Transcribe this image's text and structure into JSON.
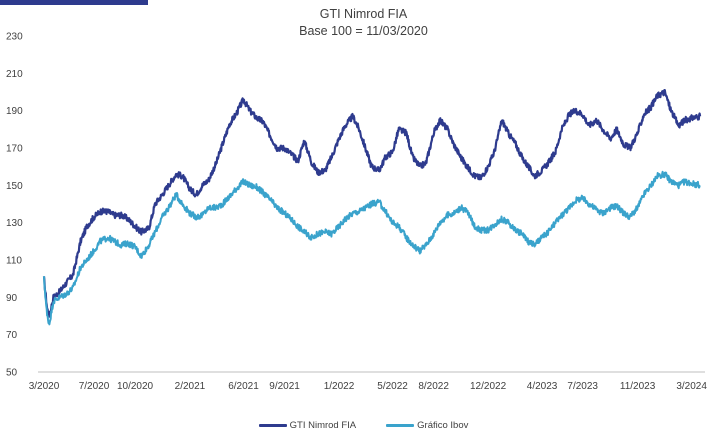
{
  "header_bar_color": "#2e3b8e",
  "chart_data": {
    "type": "line",
    "title": "GTI Nimrod FIA",
    "subtitle": "Base 100 = 11/03/2020",
    "xlabel": "",
    "ylabel": "",
    "ylim": [
      50,
      230
    ],
    "yticks": [
      50,
      70,
      90,
      110,
      130,
      150,
      170,
      190,
      210,
      230
    ],
    "xlim": [
      "2020-03-11",
      "2024-03-31"
    ],
    "xticks": [
      {
        "label": "3/2020",
        "date": "2020-03-01"
      },
      {
        "label": "7/2020",
        "date": "2020-07-01"
      },
      {
        "label": "10/2020",
        "date": "2020-10-01"
      },
      {
        "label": "2/2021",
        "date": "2021-02-01"
      },
      {
        "label": "6/2021",
        "date": "2021-06-01"
      },
      {
        "label": "9/2021",
        "date": "2021-09-01"
      },
      {
        "label": "1/2022",
        "date": "2022-01-01"
      },
      {
        "label": "5/2022",
        "date": "2022-05-01"
      },
      {
        "label": "8/2022",
        "date": "2022-08-01"
      },
      {
        "label": "12/2022",
        "date": "2022-12-01"
      },
      {
        "label": "4/2023",
        "date": "2023-04-01"
      },
      {
        "label": "7/2023",
        "date": "2023-07-01"
      },
      {
        "label": "11/2023",
        "date": "2023-11-01"
      },
      {
        "label": "3/2024",
        "date": "2024-03-01"
      }
    ],
    "grid": false,
    "legend_position": "bottom",
    "series": [
      {
        "name": "GTI Nimrod FIA",
        "color": "#2e3b8e",
        "points": [
          [
            "2020-03-11",
            100
          ],
          [
            "2020-03-18",
            84
          ],
          [
            "2020-03-23",
            80
          ],
          [
            "2020-04-01",
            90
          ],
          [
            "2020-04-15",
            93
          ],
          [
            "2020-05-01",
            98
          ],
          [
            "2020-05-15",
            102
          ],
          [
            "2020-06-01",
            120
          ],
          [
            "2020-06-15",
            128
          ],
          [
            "2020-07-01",
            133
          ],
          [
            "2020-07-15",
            136
          ],
          [
            "2020-08-01",
            136
          ],
          [
            "2020-08-15",
            134
          ],
          [
            "2020-09-01",
            134
          ],
          [
            "2020-09-15",
            132
          ],
          [
            "2020-10-01",
            128
          ],
          [
            "2020-10-15",
            125
          ],
          [
            "2020-11-01",
            127
          ],
          [
            "2020-11-15",
            140
          ],
          [
            "2020-12-01",
            145
          ],
          [
            "2020-12-15",
            150
          ],
          [
            "2021-01-01",
            156
          ],
          [
            "2021-01-15",
            155
          ],
          [
            "2021-02-01",
            148
          ],
          [
            "2021-02-15",
            145
          ],
          [
            "2021-03-01",
            150
          ],
          [
            "2021-03-15",
            153
          ],
          [
            "2021-04-01",
            162
          ],
          [
            "2021-04-15",
            172
          ],
          [
            "2021-05-01",
            183
          ],
          [
            "2021-05-15",
            188
          ],
          [
            "2021-06-01",
            196
          ],
          [
            "2021-06-15",
            190
          ],
          [
            "2021-07-01",
            186
          ],
          [
            "2021-07-15",
            184
          ],
          [
            "2021-08-01",
            176
          ],
          [
            "2021-08-15",
            170
          ],
          [
            "2021-09-01",
            170
          ],
          [
            "2021-09-15",
            167
          ],
          [
            "2021-10-01",
            163
          ],
          [
            "2021-10-15",
            174
          ],
          [
            "2021-11-01",
            162
          ],
          [
            "2021-11-15",
            157
          ],
          [
            "2021-12-01",
            158
          ],
          [
            "2021-12-15",
            165
          ],
          [
            "2022-01-01",
            175
          ],
          [
            "2022-01-15",
            182
          ],
          [
            "2022-02-01",
            187
          ],
          [
            "2022-02-15",
            180
          ],
          [
            "2022-03-01",
            170
          ],
          [
            "2022-03-15",
            160
          ],
          [
            "2022-04-01",
            158
          ],
          [
            "2022-04-15",
            165
          ],
          [
            "2022-05-01",
            168
          ],
          [
            "2022-05-15",
            180
          ],
          [
            "2022-06-01",
            178
          ],
          [
            "2022-06-15",
            165
          ],
          [
            "2022-07-01",
            160
          ],
          [
            "2022-07-15",
            162
          ],
          [
            "2022-08-01",
            178
          ],
          [
            "2022-08-15",
            185
          ],
          [
            "2022-09-01",
            180
          ],
          [
            "2022-09-15",
            172
          ],
          [
            "2022-10-01",
            165
          ],
          [
            "2022-10-15",
            160
          ],
          [
            "2022-11-01",
            155
          ],
          [
            "2022-11-15",
            154
          ],
          [
            "2022-12-01",
            160
          ],
          [
            "2022-12-15",
            168
          ],
          [
            "2023-01-01",
            185
          ],
          [
            "2023-01-15",
            178
          ],
          [
            "2023-02-01",
            172
          ],
          [
            "2023-02-15",
            165
          ],
          [
            "2023-03-01",
            160
          ],
          [
            "2023-03-15",
            155
          ],
          [
            "2023-04-01",
            158
          ],
          [
            "2023-04-15",
            162
          ],
          [
            "2023-05-01",
            168
          ],
          [
            "2023-05-15",
            180
          ],
          [
            "2023-06-01",
            188
          ],
          [
            "2023-06-15",
            190
          ],
          [
            "2023-07-01",
            188
          ],
          [
            "2023-07-15",
            182
          ],
          [
            "2023-08-01",
            185
          ],
          [
            "2023-08-15",
            180
          ],
          [
            "2023-09-01",
            175
          ],
          [
            "2023-09-15",
            180
          ],
          [
            "2023-10-01",
            172
          ],
          [
            "2023-10-15",
            170
          ],
          [
            "2023-11-01",
            178
          ],
          [
            "2023-11-15",
            188
          ],
          [
            "2023-12-01",
            192
          ],
          [
            "2023-12-15",
            198
          ],
          [
            "2024-01-01",
            200
          ],
          [
            "2024-01-15",
            190
          ],
          [
            "2024-02-01",
            182
          ],
          [
            "2024-02-15",
            185
          ],
          [
            "2024-03-01",
            186
          ],
          [
            "2024-03-20",
            187
          ]
        ]
      },
      {
        "name": "Gráfico Ibov",
        "color": "#3aa3cc",
        "points": [
          [
            "2020-03-11",
            100
          ],
          [
            "2020-03-18",
            80
          ],
          [
            "2020-03-23",
            76
          ],
          [
            "2020-04-01",
            88
          ],
          [
            "2020-04-15",
            90
          ],
          [
            "2020-05-01",
            92
          ],
          [
            "2020-05-15",
            95
          ],
          [
            "2020-06-01",
            106
          ],
          [
            "2020-06-15",
            110
          ],
          [
            "2020-07-01",
            115
          ],
          [
            "2020-07-15",
            120
          ],
          [
            "2020-08-01",
            122
          ],
          [
            "2020-08-15",
            120
          ],
          [
            "2020-09-01",
            118
          ],
          [
            "2020-09-15",
            119
          ],
          [
            "2020-10-01",
            117
          ],
          [
            "2020-10-15",
            112
          ],
          [
            "2020-11-01",
            118
          ],
          [
            "2020-11-15",
            125
          ],
          [
            "2020-12-01",
            133
          ],
          [
            "2020-12-15",
            138
          ],
          [
            "2021-01-01",
            145
          ],
          [
            "2021-01-15",
            140
          ],
          [
            "2021-02-01",
            135
          ],
          [
            "2021-02-15",
            133
          ],
          [
            "2021-03-01",
            134
          ],
          [
            "2021-03-15",
            138
          ],
          [
            "2021-04-01",
            138
          ],
          [
            "2021-04-15",
            140
          ],
          [
            "2021-05-01",
            144
          ],
          [
            "2021-05-15",
            148
          ],
          [
            "2021-06-01",
            152
          ],
          [
            "2021-06-15",
            150
          ],
          [
            "2021-07-01",
            149
          ],
          [
            "2021-07-15",
            146
          ],
          [
            "2021-08-01",
            142
          ],
          [
            "2021-08-15",
            138
          ],
          [
            "2021-09-01",
            135
          ],
          [
            "2021-09-15",
            132
          ],
          [
            "2021-10-01",
            128
          ],
          [
            "2021-10-15",
            125
          ],
          [
            "2021-11-01",
            122
          ],
          [
            "2021-11-15",
            124
          ],
          [
            "2021-12-01",
            125
          ],
          [
            "2021-12-15",
            124
          ],
          [
            "2022-01-01",
            128
          ],
          [
            "2022-01-15",
            132
          ],
          [
            "2022-02-01",
            135
          ],
          [
            "2022-02-15",
            136
          ],
          [
            "2022-03-01",
            138
          ],
          [
            "2022-03-15",
            140
          ],
          [
            "2022-04-01",
            141
          ],
          [
            "2022-04-15",
            136
          ],
          [
            "2022-05-01",
            130
          ],
          [
            "2022-05-15",
            128
          ],
          [
            "2022-06-01",
            122
          ],
          [
            "2022-06-15",
            118
          ],
          [
            "2022-07-01",
            115
          ],
          [
            "2022-07-15",
            118
          ],
          [
            "2022-08-01",
            124
          ],
          [
            "2022-08-15",
            130
          ],
          [
            "2022-09-01",
            134
          ],
          [
            "2022-09-15",
            135
          ],
          [
            "2022-10-01",
            138
          ],
          [
            "2022-10-15",
            136
          ],
          [
            "2022-11-01",
            128
          ],
          [
            "2022-11-15",
            126
          ],
          [
            "2022-12-01",
            126
          ],
          [
            "2022-12-15",
            129
          ],
          [
            "2023-01-01",
            132
          ],
          [
            "2023-01-15",
            130
          ],
          [
            "2023-02-01",
            126
          ],
          [
            "2023-02-15",
            124
          ],
          [
            "2023-03-01",
            120
          ],
          [
            "2023-03-15",
            118
          ],
          [
            "2023-04-01",
            122
          ],
          [
            "2023-04-15",
            125
          ],
          [
            "2023-05-01",
            130
          ],
          [
            "2023-05-15",
            134
          ],
          [
            "2023-06-01",
            138
          ],
          [
            "2023-06-15",
            142
          ],
          [
            "2023-07-01",
            143
          ],
          [
            "2023-07-15",
            140
          ],
          [
            "2023-08-01",
            137
          ],
          [
            "2023-08-15",
            135
          ],
          [
            "2023-09-01",
            138
          ],
          [
            "2023-09-15",
            139
          ],
          [
            "2023-10-01",
            135
          ],
          [
            "2023-10-15",
            133
          ],
          [
            "2023-11-01",
            138
          ],
          [
            "2023-11-15",
            145
          ],
          [
            "2023-12-01",
            150
          ],
          [
            "2023-12-15",
            155
          ],
          [
            "2024-01-01",
            156
          ],
          [
            "2024-01-15",
            152
          ],
          [
            "2024-02-01",
            150
          ],
          [
            "2024-02-15",
            152
          ],
          [
            "2024-03-01",
            151
          ],
          [
            "2024-03-20",
            150
          ]
        ]
      }
    ]
  }
}
